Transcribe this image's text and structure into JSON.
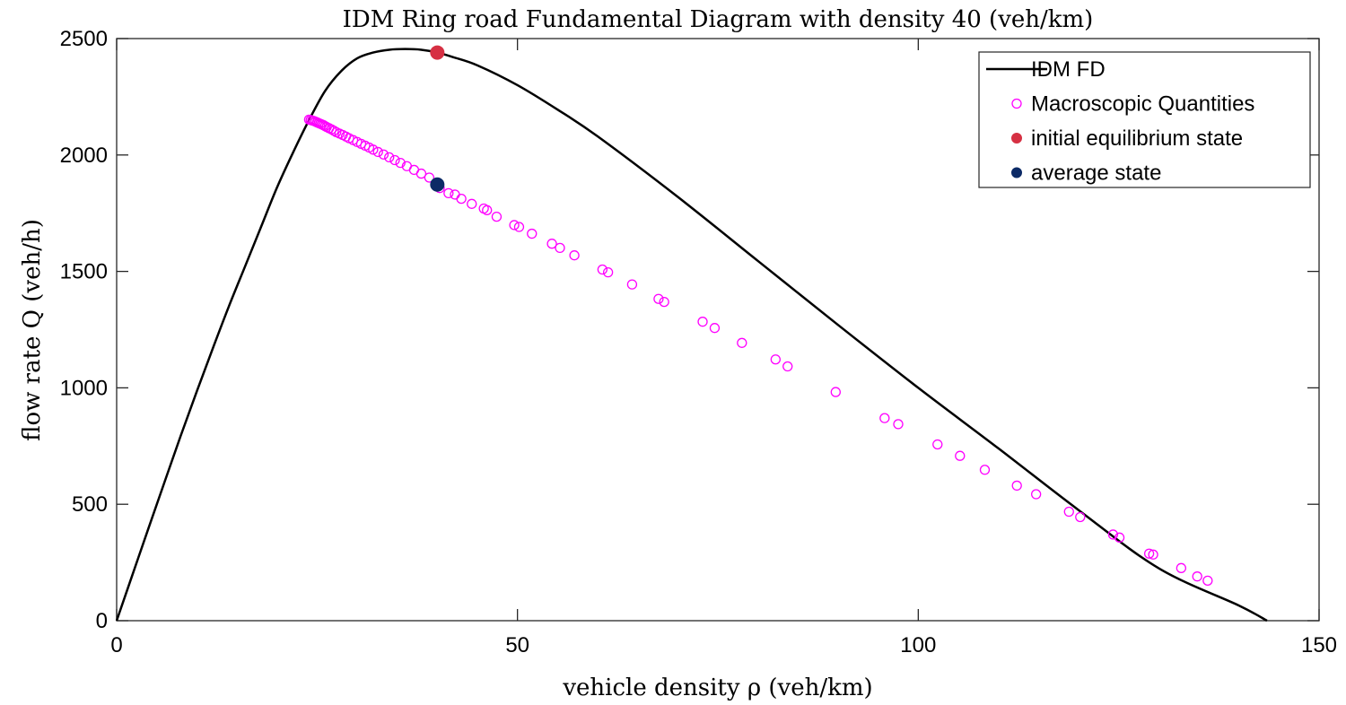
{
  "chart_data": {
    "type": "scatter",
    "title": "IDM Ring road Fundamental Diagram with density 40 (veh/km)",
    "xlabel": "vehicle density ρ (veh/km)",
    "ylabel": "flow rate Q (veh/h)",
    "xlim": [
      0,
      150
    ],
    "ylim": [
      0,
      2500
    ],
    "xticks": [
      "0",
      "50",
      "100",
      "150"
    ],
    "yticks": [
      "0",
      "500",
      "1000",
      "1500",
      "2000",
      "2500"
    ],
    "grid": false,
    "legend_position": "top-right",
    "series": [
      {
        "name": "IDM FD",
        "kind": "line",
        "color": "#000000",
        "x": [
          0,
          2,
          4,
          6,
          8,
          10,
          12,
          14,
          16,
          18,
          20,
          22,
          24,
          26,
          28,
          30,
          32,
          34,
          36,
          38,
          40,
          42,
          45,
          50,
          55,
          60,
          70,
          80,
          90,
          100,
          110,
          120,
          130,
          140,
          143.5
        ],
        "y": [
          0,
          200,
          400,
          598,
          795,
          985,
          1170,
          1350,
          1520,
          1690,
          1860,
          2010,
          2150,
          2275,
          2360,
          2415,
          2440,
          2452,
          2455,
          2452,
          2440,
          2420,
          2385,
          2300,
          2195,
          2080,
          1820,
          1545,
          1270,
          1000,
          740,
          475,
          225,
          65,
          0
        ]
      },
      {
        "name": "Macroscopic Quantities",
        "kind": "scatter-open",
        "color": "#ff00ff",
        "x": [
          24,
          24.2,
          24.4,
          24.6,
          24.8,
          25,
          25.2,
          25.4,
          25.6,
          25.8,
          26,
          26.2,
          26.5,
          26.8,
          27.1,
          27.4,
          27.8,
          28.2,
          28.6,
          29,
          29.5,
          30,
          30.5,
          31,
          31.5,
          32,
          32.6,
          33.3,
          34,
          34.7,
          35.4,
          36.2,
          37.1,
          38,
          39,
          40.3,
          41.4,
          42.2,
          43,
          44.3,
          45.8,
          46.2,
          47.4,
          49.6,
          50.2,
          51.8,
          54.3,
          55.3,
          57.1,
          60.6,
          61.3,
          64.3,
          67.6,
          68.3,
          73.1,
          74.6,
          78,
          82.2,
          83.7,
          89.7,
          95.8,
          97.5,
          102.4,
          105.2,
          108.3,
          112.3,
          114.7,
          118.8,
          120.2,
          124.3,
          125.1,
          128.8,
          129.3,
          132.8,
          134.8,
          136.1
        ],
        "y": [
          2152,
          2150,
          2148,
          2146,
          2143,
          2140,
          2137,
          2134,
          2131,
          2128,
          2124,
          2120,
          2115,
          2110,
          2104,
          2098,
          2092,
          2086,
          2079,
          2072,
          2064,
          2056,
          2048,
          2040,
          2032,
          2023,
          2013,
          2002,
          1990,
          1978,
          1966,
          1952,
          1936,
          1920,
          1903,
          1858,
          1836,
          1830,
          1812,
          1790,
          1770,
          1763,
          1735,
          1699,
          1691,
          1662,
          1619,
          1601,
          1569,
          1508,
          1496,
          1444,
          1382,
          1369,
          1284,
          1257,
          1193,
          1122,
          1092,
          982,
          870,
          844,
          757,
          708,
          648,
          580,
          543,
          468,
          445,
          370,
          357,
          288,
          284,
          226,
          190,
          172
        ]
      },
      {
        "name": "initial equilibrium state",
        "kind": "scatter-filled",
        "color": "#d63043",
        "x": [
          40
        ],
        "y": [
          2440
        ]
      },
      {
        "name": "average state",
        "kind": "scatter-filled",
        "color": "#0c2a66",
        "x": [
          40
        ],
        "y": [
          1873
        ]
      }
    ]
  }
}
